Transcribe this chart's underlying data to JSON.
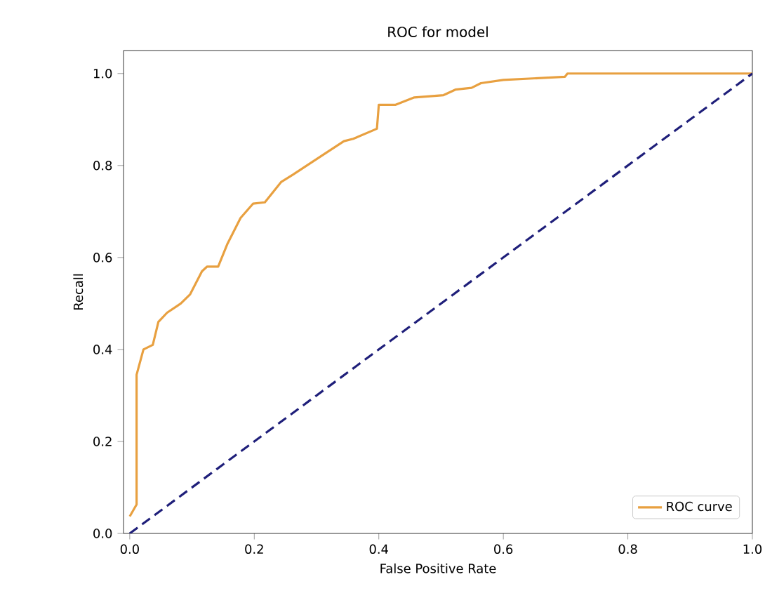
{
  "chart_data": {
    "type": "line",
    "title": "ROC for model",
    "xlabel": "False Positive Rate",
    "ylabel": "Recall",
    "xlim": [
      -0.01,
      1.0
    ],
    "ylim": [
      0,
      1.05
    ],
    "xticks": [
      {
        "value": 0,
        "label": "0.0"
      },
      0.2,
      0.4,
      0.6,
      0.8,
      {
        "value": 1,
        "label": "1.0"
      }
    ],
    "yticks": [
      {
        "value": 0,
        "label": "0.0"
      },
      0.2,
      0.4,
      0.6,
      0.8,
      {
        "value": 1,
        "label": "1.0"
      }
    ],
    "legend": "bottom right",
    "grid": false,
    "series": [
      {
        "name": "ROC curve",
        "color": "#e8a040",
        "line_style": "solid",
        "x": [
          0,
          0.011,
          0.011,
          0.022,
          0.037,
          0.046,
          0.06,
          0.082,
          0.097,
          0.116,
          0.124,
          0.142,
          0.157,
          0.178,
          0.198,
          0.217,
          0.243,
          0.262,
          0.307,
          0.344,
          0.359,
          0.397,
          0.4,
          0.427,
          0.457,
          0.504,
          0.523,
          0.549,
          0.564,
          0.6,
          0.699,
          0.703,
          1.0
        ],
        "values": [
          0.037,
          0.063,
          0.345,
          0.4,
          0.41,
          0.46,
          0.48,
          0.5,
          0.52,
          0.57,
          0.58,
          0.58,
          0.63,
          0.686,
          0.717,
          0.72,
          0.764,
          0.78,
          0.82,
          0.853,
          0.858,
          0.88,
          0.932,
          0.932,
          0.948,
          0.953,
          0.965,
          0.969,
          0.979,
          0.986,
          0.993,
          1.0,
          1.0
        ]
      },
      {
        "color": "#1f1f7a",
        "line_style": "dashed",
        "x": [
          0,
          1
        ],
        "values": [
          0,
          1
        ]
      }
    ]
  }
}
